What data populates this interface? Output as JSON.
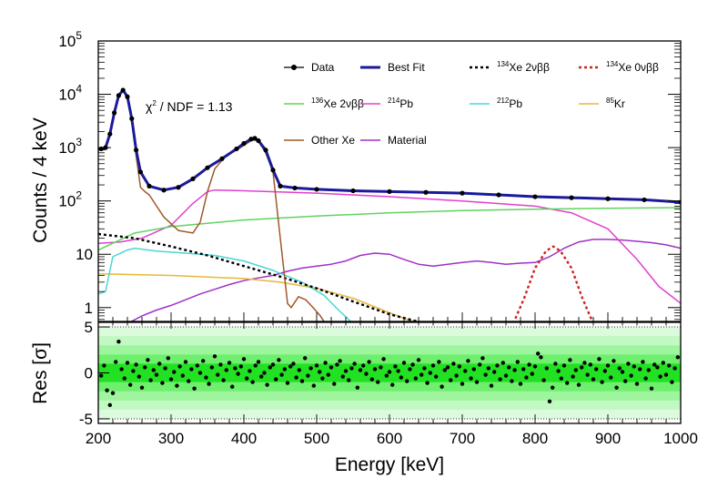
{
  "chart_data": [
    {
      "type": "line",
      "subtype": "stacked-histogram-fit",
      "xlabel": "Energy [keV]",
      "ylabel": "Counts / 4 keV",
      "xlim": [
        200,
        1000
      ],
      "ylim": [
        0.55,
        100000
      ],
      "yscale": "log",
      "x_ticks": [
        "200",
        "300",
        "400",
        "500",
        "600",
        "700",
        "800",
        "900",
        "1000"
      ],
      "y_ticks": [
        {
          "v": 1,
          "label": "1"
        },
        {
          "v": 10,
          "label": "10"
        },
        {
          "v": 100,
          "label": "10",
          "exp": "2"
        },
        {
          "v": 1000,
          "label": "10",
          "exp": "3"
        },
        {
          "v": 10000,
          "label": "10",
          "exp": "4"
        },
        {
          "v": 100000,
          "label": "10",
          "exp": "5"
        }
      ],
      "annotation": {
        "text": "χ",
        "exp": "2",
        "rest": " / NDF = 1.13"
      },
      "legend": [
        {
          "pre": "",
          "sup": "",
          "label": "Data",
          "color": "#000000",
          "style": "marker"
        },
        {
          "pre": "",
          "sup": "",
          "label": "Best Fit",
          "color": "#1a1a9c",
          "style": "solid"
        },
        {
          "pre": "",
          "sup": "134",
          "label": "Xe 2νββ",
          "color": "#000000",
          "style": "dashed"
        },
        {
          "pre": "",
          "sup": "134",
          "label": "Xe 0νββ",
          "color": "#cc2222",
          "style": "dashed"
        },
        {
          "pre": "",
          "sup": "136",
          "label": "Xe 2νββ",
          "color": "#5fd45f",
          "style": "solid"
        },
        {
          "pre": "",
          "sup": "214",
          "label": "Pb",
          "color": "#e040d0",
          "style": "solid"
        },
        {
          "pre": "",
          "sup": "212",
          "label": "Pb",
          "color": "#4cd6d6",
          "style": "solid"
        },
        {
          "pre": "",
          "sup": "85",
          "label": "Kr",
          "color": "#e5b73a",
          "style": "solid"
        },
        {
          "pre": "",
          "sup": "",
          "label": "Other Xe",
          "color": "#a0582a",
          "style": "solid"
        },
        {
          "pre": "",
          "sup": "",
          "label": "Material",
          "color": "#a030c8",
          "style": "solid"
        }
      ],
      "series": [
        {
          "name": "Data",
          "color": "#000000",
          "style": "marker",
          "x": [
            204,
            210,
            216,
            222,
            228,
            234,
            240,
            246,
            252,
            258,
            270,
            290,
            310,
            330,
            350,
            370,
            390,
            400,
            410,
            415,
            420,
            430,
            440,
            450,
            470,
            500,
            550,
            600,
            650,
            700,
            750,
            800,
            850,
            900,
            950,
            1000
          ],
          "y": [
            950,
            1000,
            1800,
            4500,
            9500,
            12000,
            9000,
            3500,
            900,
            350,
            190,
            160,
            180,
            260,
            420,
            620,
            950,
            1200,
            1450,
            1500,
            1350,
            900,
            380,
            190,
            175,
            165,
            155,
            150,
            145,
            140,
            130,
            120,
            115,
            110,
            105,
            95
          ]
        },
        {
          "name": "Best Fit",
          "color": "#1a1a9c",
          "style": "solid",
          "x": [
            200,
            204,
            210,
            216,
            222,
            228,
            234,
            240,
            246,
            252,
            258,
            270,
            290,
            310,
            330,
            350,
            370,
            390,
            400,
            410,
            415,
            420,
            430,
            440,
            450,
            470,
            500,
            550,
            600,
            650,
            700,
            750,
            800,
            850,
            900,
            950,
            1000
          ],
          "y": [
            930,
            950,
            1000,
            1800,
            4500,
            9500,
            12000,
            9000,
            3500,
            900,
            350,
            190,
            160,
            180,
            260,
            420,
            620,
            950,
            1200,
            1450,
            1500,
            1350,
            900,
            380,
            190,
            175,
            165,
            155,
            150,
            145,
            140,
            130,
            120,
            115,
            110,
            105,
            95
          ]
        },
        {
          "name": "134Xe 2νββ",
          "color": "#000000",
          "style": "dashed",
          "x": [
            200,
            250,
            300,
            350,
            400,
            450,
            500,
            550,
            600,
            650
          ],
          "y": [
            24,
            20,
            14,
            9.5,
            6,
            3.8,
            2.3,
            1.3,
            0.75,
            0.5
          ]
        },
        {
          "name": "134Xe 0νββ",
          "color": "#cc2222",
          "style": "dashed",
          "x": [
            770,
            785,
            800,
            815,
            825,
            835,
            850,
            865,
            880
          ],
          "y": [
            0.5,
            1.5,
            5.5,
            11.5,
            14,
            11.5,
            5.5,
            1.5,
            0.5
          ]
        },
        {
          "name": "136Xe 2νββ",
          "color": "#5fd45f",
          "style": "solid",
          "x": [
            200,
            250,
            300,
            400,
            500,
            600,
            700,
            800,
            900,
            1000
          ],
          "y": [
            12,
            25,
            33,
            44,
            52,
            60,
            66,
            70,
            73,
            75
          ]
        },
        {
          "name": "214Pb",
          "color": "#e040d0",
          "style": "solid",
          "x": [
            200,
            230,
            260,
            300,
            330,
            350,
            360,
            400,
            500,
            600,
            700,
            800,
            850,
            900,
            940,
            970,
            1000
          ],
          "y": [
            16,
            17,
            20,
            35,
            90,
            150,
            160,
            155,
            140,
            120,
            100,
            80,
            60,
            30,
            8,
            2.5,
            1.2
          ]
        },
        {
          "name": "212Pb",
          "color": "#4cd6d6",
          "style": "solid",
          "x": [
            200,
            210,
            220,
            240,
            250,
            280,
            320,
            360,
            400,
            440,
            480,
            510,
            530,
            550
          ],
          "y": [
            1.8,
            2.0,
            9,
            12,
            13,
            11.5,
            10.5,
            9.5,
            7.5,
            5,
            3,
            1.7,
            0.9,
            0.5
          ]
        },
        {
          "name": "85Kr",
          "color": "#e5b73a",
          "style": "solid",
          "x": [
            200,
            300,
            400,
            450,
            500,
            550,
            600,
            640
          ],
          "y": [
            4.3,
            4.0,
            3.5,
            3.0,
            2.3,
            1.5,
            0.8,
            0.5
          ]
        },
        {
          "name": "Other Xe",
          "color": "#a0582a",
          "style": "solid",
          "x": [
            200,
            204,
            210,
            216,
            222,
            228,
            234,
            240,
            246,
            252,
            258,
            264,
            270,
            290,
            310,
            330,
            340,
            350,
            360,
            375,
            390,
            400,
            410,
            415,
            420,
            430,
            440,
            450,
            460,
            465,
            475,
            485,
            495,
            505,
            512
          ],
          "y": [
            930,
            950,
            1000,
            1800,
            4500,
            9500,
            12000,
            9000,
            3500,
            700,
            180,
            150,
            130,
            50,
            28,
            25,
            40,
            150,
            400,
            700,
            900,
            1100,
            1350,
            1400,
            1300,
            800,
            350,
            20,
            1.2,
            1.0,
            1.6,
            1.4,
            1.0,
            0.7,
            0.5
          ]
        },
        {
          "name": "Material",
          "color": "#a030c8",
          "style": "solid",
          "x": [
            240,
            260,
            280,
            300,
            320,
            340,
            360,
            380,
            400,
            420,
            440,
            460,
            480,
            500,
            520,
            540,
            560,
            580,
            600,
            620,
            640,
            660,
            680,
            700,
            720,
            740,
            760,
            780,
            800,
            820,
            840,
            860,
            880,
            900,
            920,
            940,
            960,
            980,
            1000
          ],
          "y": [
            0.5,
            0.7,
            0.9,
            1.1,
            1.4,
            1.8,
            2.2,
            2.7,
            3.2,
            3.6,
            4.0,
            4.8,
            5.5,
            6.0,
            6.5,
            7.5,
            9.5,
            10.5,
            10.0,
            8.0,
            6.5,
            6.0,
            6.5,
            7.0,
            7.5,
            7.0,
            6.5,
            6.8,
            7.0,
            9.0,
            13.0,
            17.0,
            19.0,
            19.0,
            18.5,
            17.5,
            16.5,
            15.0,
            13.0
          ]
        }
      ]
    },
    {
      "type": "scatter",
      "xlabel": "Energy [keV]",
      "ylabel": "Res [σ]",
      "xlim": [
        200,
        1000
      ],
      "ylim": [
        -5.5,
        5.5
      ],
      "y_ticks": [
        -5,
        0,
        5
      ],
      "x_ticks": [
        "200",
        "300",
        "400",
        "500",
        "600",
        "700",
        "800",
        "900",
        "1000"
      ],
      "bands": [
        {
          "sigma": 1,
          "color": "#22e022"
        },
        {
          "sigma": 2,
          "color": "#6ef06e"
        },
        {
          "sigma": 3,
          "color": "#9ef59e"
        },
        {
          "sigma": 4,
          "color": "#c2f8c2"
        },
        {
          "sigma": 5,
          "color": "#dcfadc"
        }
      ],
      "dotted_lines": [
        -5,
        5
      ],
      "x": [
        204,
        208,
        212,
        216,
        220,
        224,
        228,
        232,
        236,
        240,
        244,
        248,
        252,
        256,
        260,
        264,
        268,
        272,
        276,
        280,
        284,
        288,
        292,
        296,
        300,
        304,
        308,
        312,
        316,
        320,
        324,
        328,
        332,
        336,
        340,
        344,
        348,
        352,
        356,
        360,
        364,
        368,
        372,
        376,
        380,
        384,
        388,
        392,
        396,
        400,
        404,
        408,
        412,
        416,
        420,
        424,
        428,
        432,
        436,
        440,
        444,
        448,
        452,
        456,
        460,
        464,
        468,
        472,
        476,
        480,
        484,
        488,
        492,
        496,
        500,
        504,
        508,
        512,
        516,
        520,
        524,
        528,
        532,
        536,
        540,
        544,
        548,
        552,
        556,
        560,
        564,
        568,
        572,
        576,
        580,
        584,
        588,
        592,
        596,
        600,
        604,
        608,
        612,
        616,
        620,
        624,
        628,
        632,
        636,
        640,
        644,
        648,
        652,
        656,
        660,
        664,
        668,
        672,
        676,
        680,
        684,
        688,
        692,
        696,
        700,
        704,
        708,
        712,
        716,
        720,
        724,
        728,
        732,
        736,
        740,
        744,
        748,
        752,
        756,
        760,
        764,
        768,
        772,
        776,
        780,
        784,
        788,
        792,
        796,
        800,
        804,
        808,
        812,
        816,
        820,
        824,
        828,
        832,
        836,
        840,
        844,
        848,
        852,
        856,
        860,
        864,
        868,
        872,
        876,
        880,
        884,
        888,
        892,
        896,
        900,
        904,
        908,
        912,
        916,
        920,
        924,
        928,
        932,
        936,
        940,
        944,
        948,
        952,
        956,
        960,
        964,
        968,
        972,
        976,
        980,
        984,
        988,
        992,
        996
      ],
      "y": [
        -0.3,
        0.8,
        -1.9,
        -3.5,
        -2.2,
        1.2,
        3.4,
        0.4,
        -0.6,
        1.1,
        -1.3,
        0.2,
        0.9,
        -0.4,
        -1.6,
        0.6,
        1.4,
        -0.8,
        0.3,
        -0.2,
        1.0,
        -1.1,
        0.5,
        1.6,
        -0.7,
        0.1,
        -1.4,
        0.7,
        -0.3,
        1.2,
        -0.9,
        0.4,
        -1.7,
        0.8,
        0.0,
        1.3,
        -0.5,
        -1.2,
        0.6,
        1.8,
        -0.2,
        0.9,
        -0.8,
        0.3,
        1.1,
        -1.5,
        0.5,
        -0.1,
        0.7,
        1.5,
        -0.6,
        0.2,
        -1.0,
        0.8,
        1.2,
        -0.4,
        0.0,
        -1.3,
        0.6,
        0.9,
        -0.7,
        1.4,
        -0.2,
        0.4,
        -1.1,
        0.7,
        1.0,
        -0.5,
        0.3,
        -0.9,
        1.6,
        -0.3,
        0.5,
        -1.4,
        0.8,
        0.1,
        -0.6,
        1.1,
        -0.2,
        0.6,
        -1.2,
        0.9,
        1.3,
        -0.4,
        0.2,
        -0.8,
        0.5,
        1.0,
        -1.6,
        0.3,
        0.8,
        -0.1,
        1.2,
        -0.7,
        0.4,
        -1.0,
        0.6,
        1.5,
        -0.3,
        0.1,
        -1.3,
        0.7,
        0.2,
        -0.5,
        1.1,
        -0.9,
        0.4,
        0.9,
        -0.6,
        1.4,
        -0.2,
        0.5,
        -1.1,
        0.0,
        0.8,
        -0.4,
        1.2,
        -1.5,
        0.3,
        0.6,
        -0.8,
        1.0,
        -0.3,
        0.7,
        -1.2,
        0.2,
        1.3,
        -0.6,
        0.4,
        -1.0,
        0.9,
        1.6,
        -0.2,
        0.5,
        -1.4,
        0.1,
        0.8,
        -0.7,
        1.1,
        -0.3,
        0.6,
        -0.9,
        0.3,
        1.2,
        -1.2,
        0.4,
        -0.5,
        0.9,
        -0.1,
        0.7,
        2.1,
        1.7,
        -0.8,
        0.5,
        -3.1,
        -1.6,
        1.0,
        0.2,
        -0.6,
        0.8,
        -1.1,
        1.4,
        -0.4,
        0.3,
        -1.3,
        0.6,
        1.1,
        -0.2,
        0.9,
        -0.7,
        0.4,
        1.5,
        -1.0,
        0.2,
        0.8,
        -0.5,
        1.3,
        -1.6,
        0.5,
        0.1,
        -0.9,
        1.0,
        -0.3,
        0.7,
        -1.2,
        0.4,
        1.2,
        -0.6,
        0.3,
        -1.7,
        0.9,
        0.6,
        -0.4,
        1.1,
        -0.2,
        0.8,
        -1.0,
        0.5,
        1.7
      ]
    }
  ]
}
